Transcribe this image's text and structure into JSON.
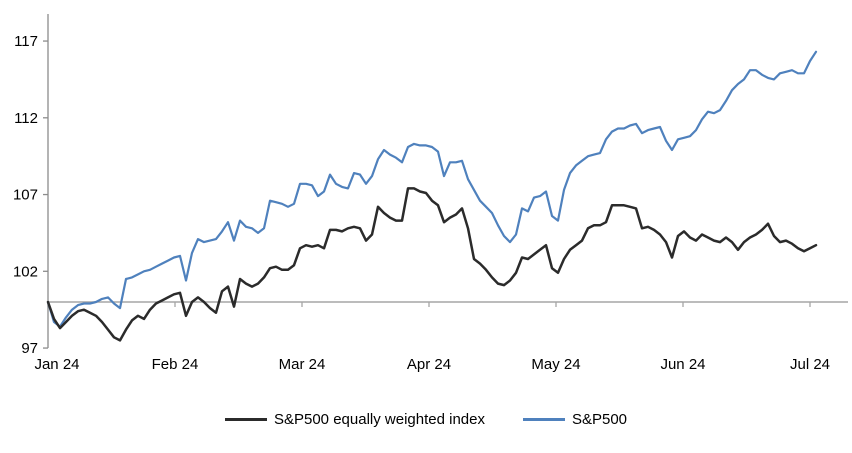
{
  "chart_data": {
    "type": "line",
    "title": "",
    "xlabel": "",
    "ylabel": "",
    "x_axis": {
      "tick_labels": [
        "Jan 24",
        "Feb 24",
        "Mar 24",
        "Apr 24",
        "May 24",
        "Jun 24",
        "Jul 24"
      ]
    },
    "y_axis": {
      "ticks": [
        97,
        102,
        107,
        112,
        117
      ],
      "ylim": [
        97,
        117
      ],
      "baseline_value": 100
    },
    "grid": "off",
    "legend_position": "bottom-center",
    "axis_colors": {
      "y_axis_line": "#8c8c8c",
      "baseline_line": "#a6a6a6",
      "tick_text": "#000000"
    },
    "series": [
      {
        "name": "S&P500 equally weighted index",
        "color": "#2b2b2b",
        "stroke_width": 2.5,
        "values": [
          100.0,
          98.9,
          98.3,
          98.7,
          99.1,
          99.4,
          99.5,
          99.3,
          99.1,
          98.7,
          98.2,
          97.7,
          97.5,
          98.2,
          98.8,
          99.1,
          98.9,
          99.5,
          99.9,
          100.1,
          100.3,
          100.5,
          100.6,
          99.1,
          100.0,
          100.3,
          100.0,
          99.6,
          99.3,
          100.7,
          101.0,
          99.7,
          101.5,
          101.2,
          101.0,
          101.2,
          101.6,
          102.2,
          102.3,
          102.1,
          102.1,
          102.4,
          103.5,
          103.7,
          103.6,
          103.7,
          103.5,
          104.7,
          104.7,
          104.6,
          104.8,
          104.9,
          104.8,
          104.0,
          104.4,
          106.2,
          105.8,
          105.5,
          105.3,
          105.3,
          107.4,
          107.4,
          107.2,
          107.1,
          106.6,
          106.3,
          105.2,
          105.5,
          105.7,
          106.1,
          104.8,
          102.8,
          102.5,
          102.1,
          101.6,
          101.2,
          101.1,
          101.4,
          101.9,
          102.9,
          102.8,
          103.1,
          103.4,
          103.7,
          102.2,
          101.9,
          102.8,
          103.4,
          103.7,
          104.0,
          104.8,
          105.0,
          105.0,
          105.2,
          106.3,
          106.3,
          106.3,
          106.2,
          106.1,
          104.8,
          104.9,
          104.7,
          104.4,
          103.9,
          102.9,
          104.3,
          104.6,
          104.2,
          104.0,
          104.4,
          104.2,
          104.0,
          103.9,
          104.2,
          103.9,
          103.4,
          103.9,
          104.2,
          104.4,
          104.7,
          105.1,
          104.3,
          103.9,
          104.0,
          103.8,
          103.5,
          103.3,
          103.5,
          103.7
        ]
      },
      {
        "name": "S&P500",
        "color": "#4f81bd",
        "stroke_width": 2.2,
        "values": [
          100.0,
          98.7,
          98.4,
          99.0,
          99.5,
          99.8,
          99.9,
          99.9,
          100.0,
          100.2,
          100.3,
          99.9,
          99.6,
          101.5,
          101.6,
          101.8,
          102.0,
          102.1,
          102.3,
          102.5,
          102.7,
          102.9,
          103.0,
          101.4,
          103.2,
          104.1,
          103.9,
          104.0,
          104.1,
          104.6,
          105.2,
          104.0,
          105.3,
          104.9,
          104.8,
          104.5,
          104.8,
          106.6,
          106.5,
          106.4,
          106.2,
          106.4,
          107.7,
          107.7,
          107.6,
          106.9,
          107.2,
          108.3,
          107.7,
          107.5,
          107.4,
          108.4,
          108.3,
          107.7,
          108.2,
          109.3,
          109.9,
          109.6,
          109.4,
          109.1,
          110.1,
          110.3,
          110.2,
          110.2,
          110.1,
          109.8,
          108.2,
          109.1,
          109.1,
          109.2,
          108.0,
          107.3,
          106.6,
          106.2,
          105.8,
          105.0,
          104.3,
          103.9,
          104.4,
          106.1,
          105.9,
          106.8,
          106.9,
          107.2,
          105.6,
          105.3,
          107.3,
          108.4,
          108.9,
          109.2,
          109.5,
          109.6,
          109.7,
          110.6,
          111.1,
          111.3,
          111.3,
          111.5,
          111.6,
          111.0,
          111.2,
          111.3,
          111.4,
          110.5,
          109.9,
          110.6,
          110.7,
          110.8,
          111.2,
          111.9,
          112.4,
          112.3,
          112.5,
          113.1,
          113.8,
          114.2,
          114.5,
          115.1,
          115.1,
          114.8,
          114.6,
          114.5,
          114.9,
          115.0,
          115.1,
          114.9,
          114.9,
          115.7,
          116.3
        ]
      }
    ]
  }
}
